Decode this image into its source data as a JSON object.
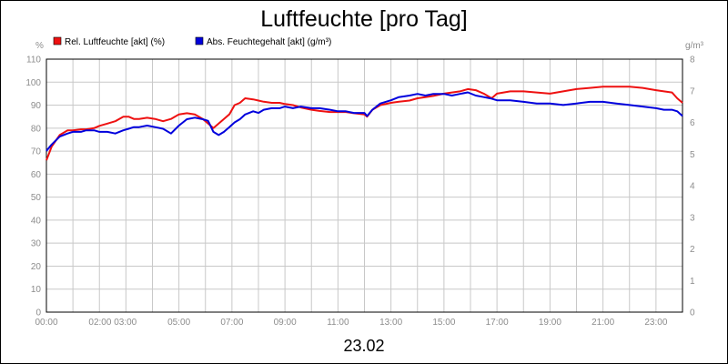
{
  "chart_data": {
    "type": "line",
    "title": "Luftfeuchte [pro Tag]",
    "date_label": "23.02",
    "x_ticks": [
      "00:00",
      "02:00 03:00",
      "05:00",
      "07:00",
      "09:00",
      "11:00",
      "13:00",
      "15:00",
      "17:00",
      "19:00",
      "21:00",
      "23:00"
    ],
    "x_range": [
      0,
      24
    ],
    "y_left": {
      "unit": "%",
      "range": [
        0,
        110
      ],
      "ticks": [
        "0",
        "10",
        "20",
        "30",
        "40",
        "50",
        "60",
        "70",
        "80",
        "90",
        "100",
        "110"
      ]
    },
    "y_right": {
      "unit": "g/m³",
      "range": [
        0,
        8
      ],
      "ticks": [
        "0",
        "1",
        "2",
        "3",
        "4",
        "5",
        "6",
        "7",
        "8"
      ]
    },
    "grid": true,
    "legend_placement": "top-left",
    "series": [
      {
        "name": "Rel. Luftfeuchte [akt] (%)",
        "axis": "left",
        "color": "#ee1111",
        "x": [
          0,
          0.2,
          0.5,
          0.8,
          1.0,
          1.3,
          1.5,
          1.8,
          2.0,
          2.3,
          2.6,
          2.9,
          3.1,
          3.3,
          3.5,
          3.8,
          4.1,
          4.4,
          4.7,
          5.0,
          5.3,
          5.6,
          5.9,
          6.1,
          6.3,
          6.5,
          6.7,
          6.9,
          7.1,
          7.3,
          7.5,
          7.8,
          8.0,
          8.2,
          8.5,
          8.8,
          9.0,
          9.3,
          9.6,
          10.0,
          10.3,
          10.7,
          11.0,
          11.3,
          11.6,
          12.0,
          12.1,
          12.3,
          12.6,
          13.0,
          13.3,
          13.7,
          14.0,
          14.3,
          14.6,
          15.0,
          15.3,
          15.6,
          15.9,
          16.2,
          16.5,
          16.8,
          17.0,
          17.5,
          18.0,
          18.5,
          19.0,
          19.5,
          20.0,
          20.5,
          21.0,
          21.5,
          22.0,
          22.5,
          23.0,
          23.3,
          23.6,
          23.8,
          24.0
        ],
        "y": [
          66,
          72,
          77,
          79,
          79,
          79.5,
          79.5,
          80,
          81,
          82,
          83,
          85,
          85,
          84,
          84,
          84.5,
          84,
          83,
          84,
          86,
          86.5,
          86,
          84,
          82,
          80,
          82,
          84,
          86,
          90,
          91,
          93,
          92.5,
          92,
          91.5,
          91,
          91,
          90.5,
          90,
          89,
          88,
          87.5,
          87,
          87,
          87,
          86.5,
          86,
          85,
          88,
          90,
          91,
          91.5,
          92,
          93,
          93.5,
          94,
          95,
          95.5,
          96,
          97,
          96.5,
          95,
          93,
          95,
          96,
          96,
          95.5,
          95,
          96,
          97,
          97.5,
          98,
          98,
          98,
          97.5,
          96.5,
          96,
          95.5,
          93,
          91
        ]
      },
      {
        "name": "Abs. Feuchtegehalt [akt] (g/m³)",
        "axis": "right",
        "color": "#0000dd",
        "x": [
          0,
          0.2,
          0.5,
          0.8,
          1.0,
          1.3,
          1.5,
          1.8,
          2.0,
          2.3,
          2.6,
          2.9,
          3.1,
          3.3,
          3.5,
          3.8,
          4.1,
          4.4,
          4.7,
          5.0,
          5.3,
          5.6,
          5.9,
          6.1,
          6.3,
          6.5,
          6.7,
          6.9,
          7.1,
          7.3,
          7.5,
          7.8,
          8.0,
          8.2,
          8.5,
          8.8,
          9.0,
          9.3,
          9.6,
          10.0,
          10.3,
          10.7,
          11.0,
          11.3,
          11.6,
          12.0,
          12.1,
          12.3,
          12.6,
          13.0,
          13.3,
          13.7,
          14.0,
          14.3,
          14.6,
          15.0,
          15.3,
          15.6,
          15.9,
          16.2,
          16.5,
          16.8,
          17.0,
          17.5,
          18.0,
          18.5,
          19.0,
          19.5,
          20.0,
          20.5,
          21.0,
          21.5,
          22.0,
          22.5,
          23.0,
          23.3,
          23.6,
          23.8,
          24.0
        ],
        "y": [
          5.1,
          5.3,
          5.55,
          5.65,
          5.7,
          5.7,
          5.75,
          5.75,
          5.7,
          5.7,
          5.65,
          5.75,
          5.8,
          5.85,
          5.85,
          5.9,
          5.85,
          5.8,
          5.65,
          5.9,
          6.1,
          6.15,
          6.1,
          6.05,
          5.7,
          5.6,
          5.7,
          5.85,
          6.0,
          6.1,
          6.25,
          6.35,
          6.3,
          6.4,
          6.45,
          6.45,
          6.5,
          6.45,
          6.5,
          6.45,
          6.45,
          6.4,
          6.35,
          6.35,
          6.3,
          6.3,
          6.2,
          6.4,
          6.6,
          6.7,
          6.8,
          6.85,
          6.9,
          6.85,
          6.9,
          6.9,
          6.85,
          6.9,
          6.95,
          6.85,
          6.8,
          6.75,
          6.7,
          6.7,
          6.65,
          6.6,
          6.6,
          6.55,
          6.6,
          6.65,
          6.65,
          6.6,
          6.55,
          6.5,
          6.45,
          6.4,
          6.4,
          6.35,
          6.2
        ]
      }
    ]
  }
}
